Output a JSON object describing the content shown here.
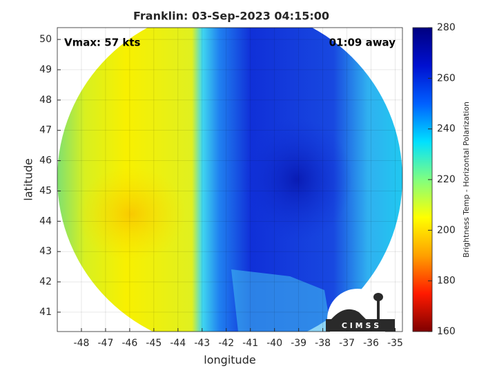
{
  "chart_data": {
    "type": "map",
    "title": "Franklin: 03-Sep-2023 04:15:00",
    "annotations": [
      "Vmax: 57 kts",
      "01:09 away"
    ],
    "x_label": "longitude",
    "y_label": "latitude",
    "xlim": [
      -49,
      -34.7
    ],
    "ylim": [
      40.36,
      50.39
    ],
    "xticks": [
      -48,
      -47,
      -46,
      -45,
      -44,
      -43,
      -42,
      -41,
      -40,
      -39,
      -38,
      -37,
      -36,
      -35
    ],
    "yticks": [
      41,
      42,
      43,
      44,
      45,
      46,
      47,
      48,
      49,
      50
    ],
    "grid": true,
    "colorbar": {
      "label": "Brightness Temp - Horizontal Polarization",
      "lim": [
        160,
        280
      ],
      "ticks": [
        160,
        180,
        200,
        220,
        240,
        260,
        280
      ],
      "colors": [
        "#7f0000",
        "#ff1a00",
        "#ffa000",
        "#ffff00",
        "#80ff80",
        "#00e0ff",
        "#0060ff",
        "#0010d0",
        "#000080"
      ]
    }
  },
  "logo": "C I M S S"
}
